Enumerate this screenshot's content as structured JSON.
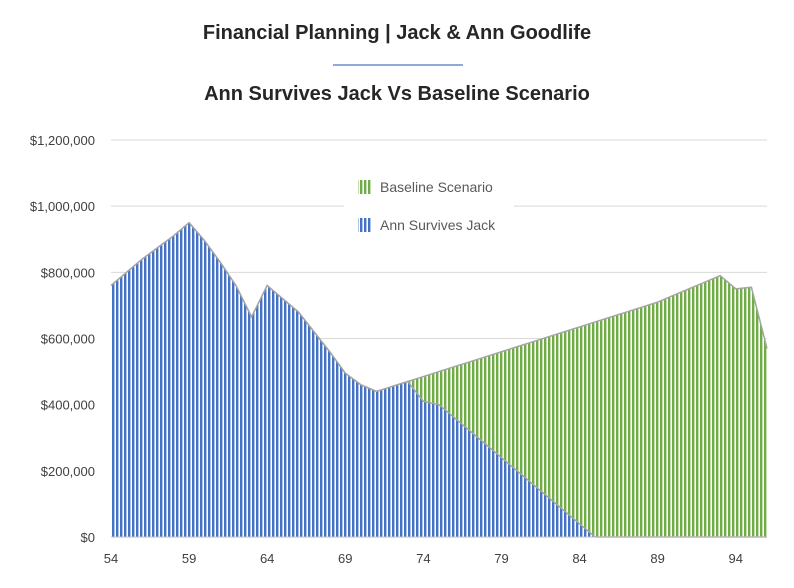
{
  "header": {
    "title": "Financial Planning | Jack & Ann Goodlife",
    "subtitle": "Ann Survives Jack Vs Baseline Scenario"
  },
  "colors": {
    "baseline": "#70ad47",
    "ann": "#4472c4",
    "outline": "#a5a5a5",
    "grid": "#d9d9d9"
  },
  "chart_data": {
    "type": "area",
    "title": "Ann Survives Jack Vs Baseline Scenario",
    "xlabel": "",
    "ylabel": "",
    "x": [
      54,
      55,
      56,
      57,
      58,
      59,
      60,
      61,
      62,
      63,
      64,
      65,
      66,
      67,
      68,
      69,
      70,
      71,
      72,
      73,
      74,
      75,
      76,
      77,
      78,
      79,
      80,
      81,
      82,
      83,
      84,
      85,
      86,
      87,
      88,
      89,
      90,
      91,
      92,
      93,
      94,
      95,
      96
    ],
    "x_ticks": [
      "54",
      "59",
      "64",
      "69",
      "74",
      "79",
      "84",
      "89",
      "94"
    ],
    "y_ticks": [
      "$0",
      "$200,000",
      "$400,000",
      "$600,000",
      "$800,000",
      "$1,000,000",
      "$1,200,000"
    ],
    "ylim": [
      0,
      1200000
    ],
    "grid": true,
    "legend_position": "center-left",
    "series": [
      {
        "name": "Baseline Scenario",
        "values": [
          760000,
          800000,
          840000,
          875000,
          910000,
          950000,
          895000,
          830000,
          760000,
          665000,
          760000,
          720000,
          680000,
          620000,
          560000,
          495000,
          460000,
          440000,
          455000,
          470000,
          485000,
          500000,
          515000,
          530000,
          545000,
          560000,
          575000,
          590000,
          605000,
          620000,
          635000,
          650000,
          665000,
          680000,
          695000,
          710000,
          730000,
          750000,
          770000,
          790000,
          750000,
          755000,
          570000
        ]
      },
      {
        "name": "Ann Survives Jack",
        "values": [
          760000,
          800000,
          840000,
          875000,
          910000,
          950000,
          895000,
          830000,
          760000,
          665000,
          760000,
          720000,
          680000,
          620000,
          560000,
          495000,
          460000,
          440000,
          455000,
          470000,
          410000,
          400000,
          360000,
          320000,
          280000,
          240000,
          200000,
          160000,
          120000,
          80000,
          40000,
          0,
          0,
          0,
          0,
          0,
          0,
          0,
          0,
          0,
          0,
          0,
          0
        ]
      }
    ]
  }
}
